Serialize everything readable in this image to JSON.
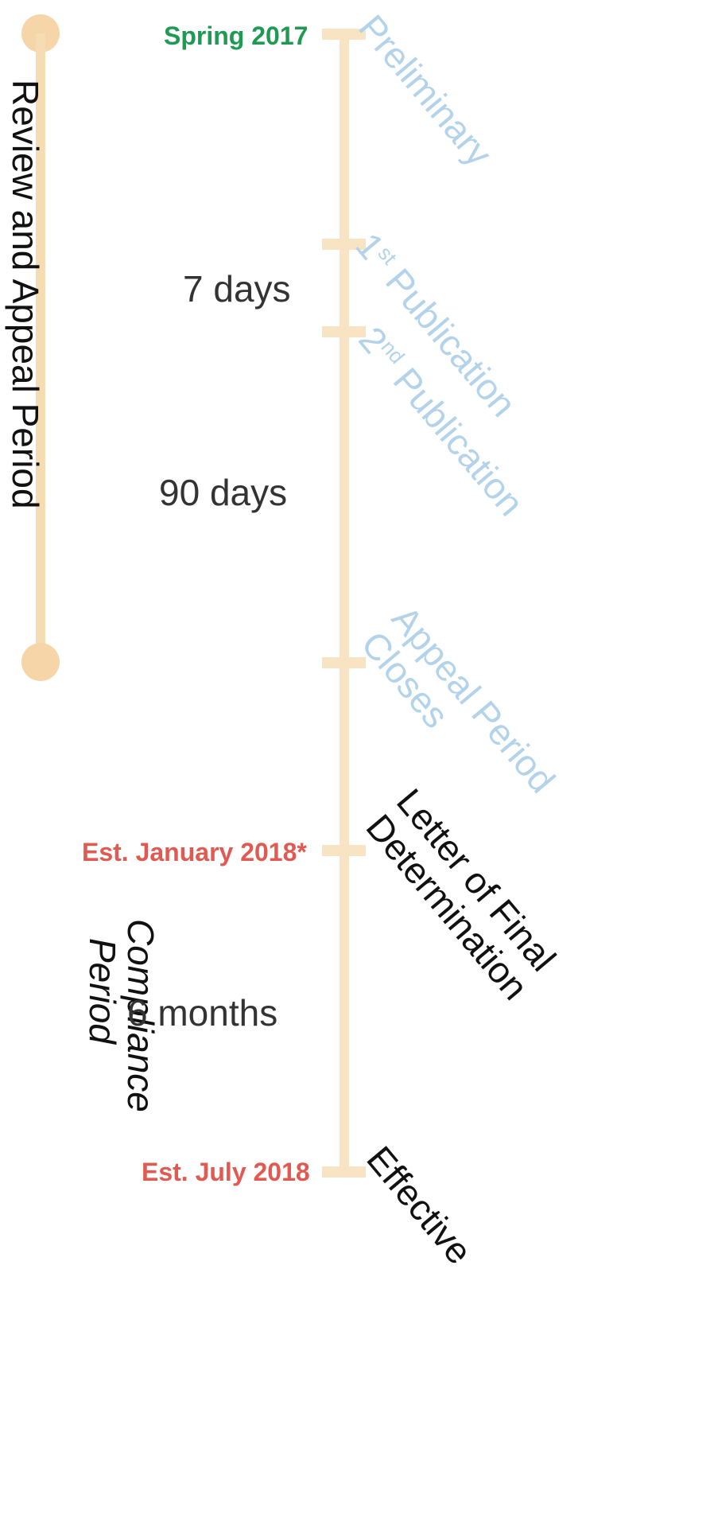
{
  "periods": {
    "review_appeal": "Review and Appeal Period",
    "compliance_line1": "Compliance",
    "compliance_line2": "Period"
  },
  "dates": {
    "spring_2017": "Spring 2017",
    "est_january_2018": "Est. January 2018*",
    "est_july_2018": "Est. July 2018"
  },
  "durations": {
    "d7": "7 days",
    "d90": "90 days",
    "m6": "6 months"
  },
  "stages": {
    "preliminary": "Preliminary",
    "first_pub_num": "1",
    "first_pub_sup": "st",
    "first_pub_word": " Publication",
    "second_pub_num": "2",
    "second_pub_sup": "nd",
    "second_pub_word": " Publication",
    "appeal_line1": "Appeal Period",
    "appeal_line2": "Closes",
    "letter_line1": "Letter of Final",
    "letter_line2": "Determination",
    "effective": "Effective"
  },
  "colors": {
    "timeline": "#f8e3c2",
    "period_bar": "#f6d6a8",
    "green_date": "#1f9a53",
    "red_date": "#e05a52",
    "blue_stage": "#b3d3ea"
  }
}
